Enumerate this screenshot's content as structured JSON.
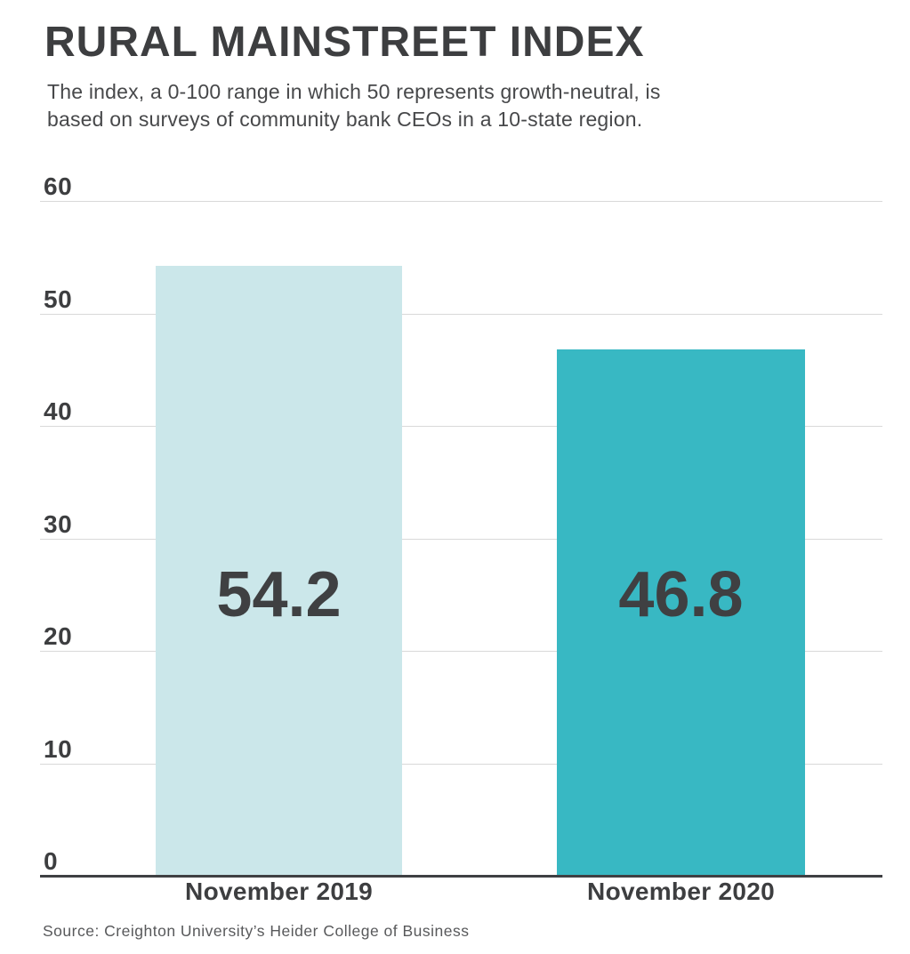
{
  "header": {
    "title": "RURAL MAINSTREET INDEX",
    "subtitle_lines": [
      "The index, a 0-100 range in which 50 represents growth-neutral, is",
      "based on surveys of community bank CEOs in a 10-state region."
    ]
  },
  "chart_data": {
    "type": "bar",
    "title": "RURAL MAINSTREET INDEX",
    "subtitle": "The index, a 0-100 range in which 50 represents growth-neutral, is based on surveys of community bank CEOs in a 10-state region.",
    "categories": [
      "November 2019",
      "November 2020"
    ],
    "values": [
      54.2,
      46.8
    ],
    "value_labels": [
      "54.2",
      "46.8"
    ],
    "bar_colors": [
      "#cbe7ea",
      "#38b8c3"
    ],
    "xlabel": "",
    "ylabel": "",
    "ylim": [
      0,
      60
    ],
    "yticks": [
      0,
      10,
      20,
      30,
      40,
      50,
      60
    ],
    "grid": true,
    "legend": false,
    "source": "Source: Creighton University’s Heider College of Business"
  },
  "source": "Source: Creighton University’s Heider College of Business",
  "colors": {
    "text_dark": "#3d3e40",
    "text_subtitle": "#47484a",
    "text_source": "#58595b",
    "gridline": "#d9d9d9",
    "axis_line": "#3f4043",
    "bar_2019": "#cbe7ea",
    "bar_2020": "#38b8c3",
    "background": "#ffffff"
  }
}
